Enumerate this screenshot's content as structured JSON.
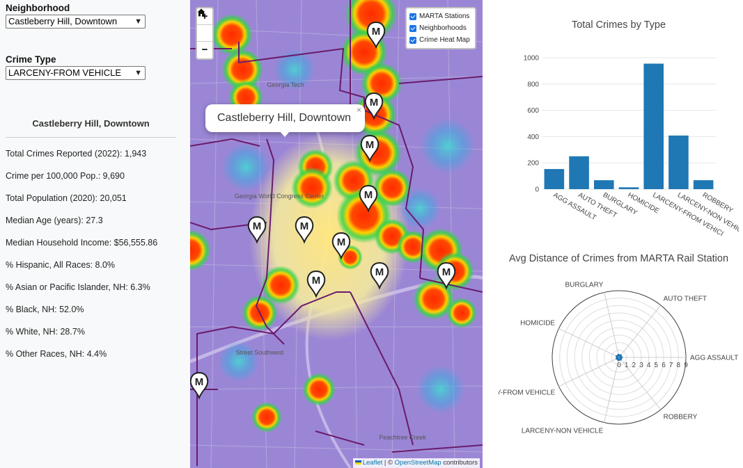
{
  "filters": {
    "neighborhood_label": "Neighborhood",
    "neighborhood_value": "Castleberry Hill, Downtown",
    "crime_type_label": "Crime Type",
    "crime_type_value": "LARCENY-FROM VEHICLE"
  },
  "stats": {
    "title": "Castleberry Hill, Downtown",
    "lines": [
      "Total Crimes Reported (2022): 1,943",
      "Crime per 100,000 Pop.: 9,690",
      "Total Population (2020): 20,051",
      "Median Age (years): 27.3",
      "Median Household Income: $56,555.86",
      "% Hispanic, All Races: 8.0%",
      "% Asian or Pacific Islander, NH: 6.3%",
      "% Black, NH: 52.0%",
      "% White, NH: 28.7%",
      "% Other Races, NH: 4.4%"
    ]
  },
  "map": {
    "zoom_in": "+",
    "zoom_home_icon": "home-icon",
    "zoom_out": "−",
    "layers": [
      "MARTA Stations",
      "Neighborhoods",
      "Crime Heat Map"
    ],
    "popup_text": "Castleberry Hill, Downtown",
    "popup_close": "×",
    "attribution_prefix": "Leaflet",
    "attribution_sep": " | © ",
    "attribution_link": "OpenStreetMap",
    "attribution_suffix": " contributors",
    "station_marker_letter": "M",
    "map_labels": [
      "Georgia Tech",
      "Georgia World Congress Center",
      "Peachtree Creek",
      "Street Southwest"
    ],
    "colors": {
      "heat_low": "#7a4fd8",
      "heat_mid": "#2ecc40",
      "heat_high": "#ffd400",
      "heat_max": "#ff3300",
      "boundary": "#6a1b6a"
    }
  },
  "chart_data": [
    {
      "type": "bar",
      "title": "Total Crimes by Type",
      "categories": [
        "AGG ASSAULT",
        "AUTO THEFT",
        "BURGLARY",
        "HOMICIDE",
        "LARCENY-FROM VEHICLE",
        "LARCENY-NON VEHICLE",
        "ROBBERY"
      ],
      "tick_labels": [
        "AGG ASSAULT",
        "AUTO THEFT",
        "BURGLARY",
        "HOMICIDE",
        "LARCENY-FROM VEHICI",
        "LARCENY-NON VEHICLE",
        "ROBBERY"
      ],
      "values": [
        153,
        250,
        68,
        14,
        955,
        408,
        68
      ],
      "ylim": [
        0,
        1000
      ],
      "yticks": [
        0,
        200,
        400,
        600,
        800,
        1000
      ],
      "color": "#1f77b4",
      "grid": true
    },
    {
      "type": "radar",
      "title": "Avg Distance of Crimes from MARTA Rail Station",
      "categories": [
        "AGG ASSAULT",
        "AUTO THEFT",
        "BURGLARY",
        "HOMICIDE",
        "LARCENY-FROM VEHICLE",
        "LARCENY-NON VEHICLE",
        "ROBBERY"
      ],
      "category_labels": [
        "AGG ASSAULT",
        "AUTO THEFT",
        "BURGLARY",
        "HOMICIDE",
        "Y-FROM VEHICLE",
        "LARCENY-NON VEHICLE",
        "ROBBERY"
      ],
      "values": [
        0.3,
        0.3,
        0.3,
        0.3,
        0.3,
        0.3,
        0.3
      ],
      "rlim": [
        0,
        9
      ],
      "rticks": [
        0,
        1,
        2,
        3,
        4,
        5,
        6,
        7,
        8,
        9
      ],
      "color": "#1f77b4",
      "grid": true
    }
  ]
}
